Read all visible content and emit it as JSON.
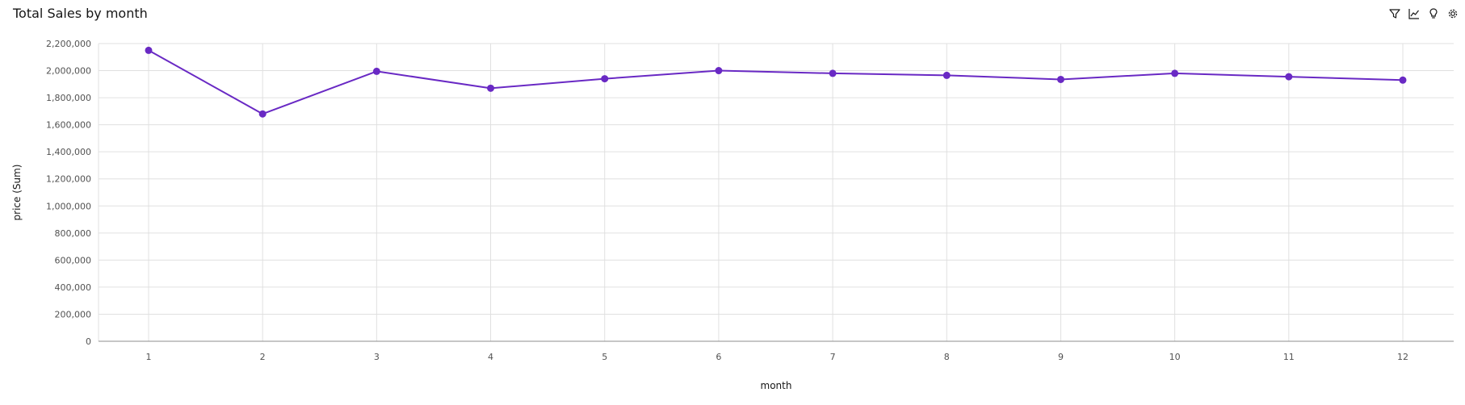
{
  "title": "Total Sales by month",
  "toolbar": {
    "items": [
      {
        "name": "filter-icon"
      },
      {
        "name": "line-chart-icon"
      },
      {
        "name": "lightbulb-icon"
      },
      {
        "name": "settings-icon"
      }
    ]
  },
  "colors": {
    "series": "#6929c4",
    "grid": "#e0e0e0",
    "axis": "#8d8d8d"
  },
  "chart_data": {
    "type": "line",
    "title": "Total Sales by month",
    "xlabel": "month",
    "ylabel": "price (Sum)",
    "x": [
      1,
      2,
      3,
      4,
      5,
      6,
      7,
      8,
      9,
      10,
      11,
      12
    ],
    "x_ticks": [
      "1",
      "2",
      "3",
      "4",
      "5",
      "6",
      "7",
      "8",
      "9",
      "10",
      "11",
      "12"
    ],
    "y_ticks": [
      "0",
      "200,000",
      "400,000",
      "600,000",
      "800,000",
      "1,000,000",
      "1,200,000",
      "1,400,000",
      "1,600,000",
      "1,800,000",
      "2,000,000",
      "2,200,000"
    ],
    "ylim": [
      0,
      2200000
    ],
    "grid": true,
    "series": [
      {
        "values": [
          2150000,
          1680000,
          1995000,
          1870000,
          1940000,
          2000000,
          1980000,
          1965000,
          1935000,
          1980000,
          1955000,
          1930000
        ]
      }
    ]
  }
}
